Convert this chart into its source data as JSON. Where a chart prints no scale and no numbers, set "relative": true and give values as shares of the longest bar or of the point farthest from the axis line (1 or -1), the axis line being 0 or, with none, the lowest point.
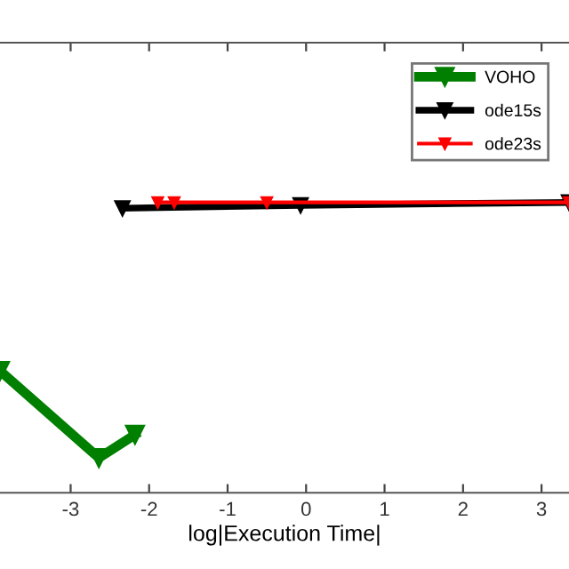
{
  "chart_data": {
    "type": "line",
    "xlabel": "log|Execution Time|",
    "relative": true,
    "xlim": [
      -3.9,
      3.35
    ],
    "xticks": [
      -3,
      -2,
      -1,
      0,
      1,
      2,
      3
    ],
    "tick_labels": "x",
    "marker": "triangle",
    "line_style": "solid",
    "grid": false,
    "legend": "top right",
    "series": [
      {
        "name": "VOHO",
        "color": "#007f00",
        "x": [
          -3.9,
          -2.64,
          -2.18
        ],
        "values": [
          0.42,
          0.12,
          0.2
        ]
      },
      {
        "name": "ode15s",
        "color": "#000000",
        "x": [
          -2.34,
          -0.07,
          3.35
        ],
        "values": [
          0.98,
          0.99,
          1
        ]
      },
      {
        "name": "ode23s",
        "color": "#ff0000",
        "x": [
          -1.89,
          -1.68,
          -0.5,
          3.35
        ],
        "values": [
          1,
          1,
          1,
          1
        ]
      }
    ]
  }
}
